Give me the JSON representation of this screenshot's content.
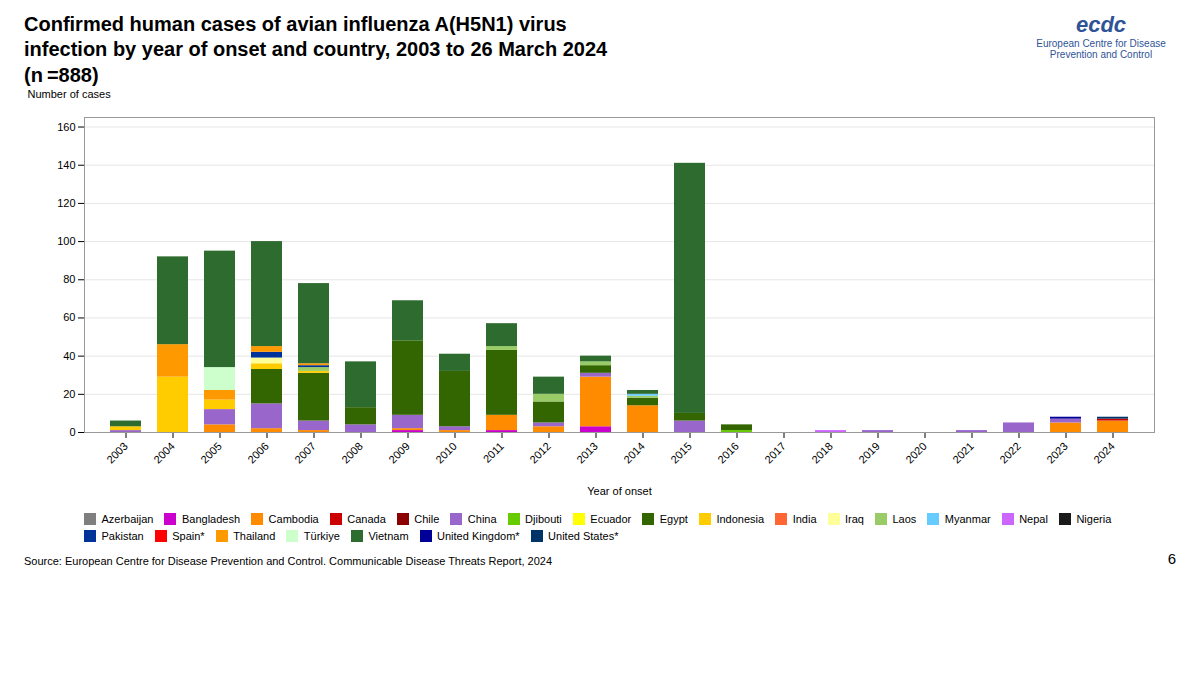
{
  "chart_data": {
    "type": "bar",
    "stacked": true,
    "title": "Confirmed human cases of avian influenza A(H5N1) virus\ninfection by year of onset and country, 2003 to 26 March 2024",
    "subtitle": "(n =888)",
    "xlabel": "Year of onset",
    "ylabel": "Number of cases",
    "annotations": [
      "ecdc",
      "European Centre for Disease Prevention and Control",
      "Source: European Centre for Disease Prevention and Control. Communicable Disease Threats Report, 2024",
      "6"
    ],
    "categories": [
      "2003",
      "2004",
      "2005",
      "2006",
      "2007",
      "2008",
      "2009",
      "2010",
      "2011",
      "2012",
      "2013",
      "2014",
      "2015",
      "2016",
      "2017",
      "2018",
      "2019",
      "2020",
      "2021",
      "2022",
      "2023",
      "2024"
    ],
    "series": [
      {
        "name": "Azerbaijan",
        "color": "#7F7F7F",
        "values": [
          0,
          0,
          0,
          0,
          0,
          0,
          0,
          0,
          0,
          0,
          0,
          0,
          0,
          0,
          0,
          0,
          0,
          0,
          0,
          0,
          0,
          0
        ]
      },
      {
        "name": "Bangladesh",
        "color": "#CC00CC",
        "values": [
          0,
          0,
          0,
          0,
          0,
          0,
          1,
          0,
          1,
          0,
          3,
          0,
          0,
          0,
          0,
          0,
          0,
          0,
          0,
          0,
          0,
          0
        ]
      },
      {
        "name": "Cambodia",
        "color": "#FF8C00",
        "values": [
          0,
          0,
          4,
          2,
          1,
          0,
          1,
          1,
          8,
          3,
          26,
          14,
          0,
          0,
          0,
          0,
          0,
          0,
          0,
          0,
          5,
          6
        ]
      },
      {
        "name": "Canada",
        "color": "#CC0000",
        "values": [
          0,
          0,
          0,
          0,
          0,
          0,
          0,
          0,
          0,
          0,
          0,
          0,
          0,
          0,
          0,
          0,
          0,
          0,
          0,
          0,
          0,
          1
        ]
      },
      {
        "name": "Chile",
        "color": "#8B0000",
        "values": [
          0,
          0,
          0,
          0,
          0,
          0,
          0,
          0,
          0,
          0,
          0,
          0,
          0,
          0,
          0,
          0,
          0,
          0,
          0,
          0,
          0,
          0
        ]
      },
      {
        "name": "China",
        "color": "#9966CC",
        "values": [
          1,
          0,
          8,
          13,
          5,
          4,
          7,
          2,
          0,
          2,
          2,
          0,
          6,
          0,
          0,
          0,
          1,
          0,
          1,
          5,
          2,
          0
        ]
      },
      {
        "name": "Djibouti",
        "color": "#66CC00",
        "values": [
          0,
          0,
          0,
          0,
          0,
          0,
          0,
          0,
          0,
          0,
          0,
          0,
          0,
          1,
          0,
          0,
          0,
          0,
          0,
          0,
          0,
          0
        ]
      },
      {
        "name": "Ecuador",
        "color": "#FFFF00",
        "values": [
          0,
          0,
          0,
          0,
          0,
          0,
          0,
          0,
          0,
          0,
          0,
          0,
          0,
          0,
          0,
          0,
          0,
          0,
          0,
          0,
          0,
          0
        ]
      },
      {
        "name": "Egypt",
        "color": "#336600",
        "values": [
          0,
          0,
          0,
          18,
          25,
          9,
          39,
          29,
          34,
          11,
          4,
          4,
          4,
          3,
          0,
          0,
          0,
          0,
          0,
          0,
          0,
          0
        ]
      },
      {
        "name": "Indonesia",
        "color": "#FFCC00",
        "values": [
          2,
          29,
          5,
          3,
          1,
          0,
          0,
          0,
          0,
          0,
          0,
          0,
          0,
          0,
          0,
          0,
          0,
          0,
          0,
          0,
          0,
          0
        ]
      },
      {
        "name": "India",
        "color": "#FF6633",
        "values": [
          0,
          0,
          0,
          0,
          0,
          0,
          0,
          0,
          0,
          0,
          0,
          0,
          0,
          0,
          0,
          0,
          0,
          0,
          0,
          0,
          0,
          0
        ]
      },
      {
        "name": "Iraq",
        "color": "#FFFF99",
        "values": [
          0,
          0,
          0,
          3,
          0,
          0,
          0,
          0,
          0,
          0,
          0,
          0,
          0,
          0,
          0,
          0,
          0,
          0,
          0,
          0,
          0,
          0
        ]
      },
      {
        "name": "Laos",
        "color": "#99CC66",
        "values": [
          0,
          0,
          0,
          0,
          2,
          0,
          0,
          0,
          2,
          4,
          2,
          1,
          0,
          0,
          0,
          0,
          0,
          0,
          0,
          0,
          0,
          0
        ]
      },
      {
        "name": "Myanmar",
        "color": "#66CCFF",
        "values": [
          0,
          0,
          0,
          0,
          0,
          0,
          0,
          0,
          0,
          0,
          0,
          1,
          0,
          0,
          0,
          0,
          0,
          0,
          0,
          0,
          0,
          0
        ]
      },
      {
        "name": "Nepal",
        "color": "#CC66FF",
        "values": [
          0,
          0,
          0,
          0,
          0,
          0,
          0,
          0,
          0,
          0,
          0,
          0,
          0,
          0,
          0,
          1,
          0,
          0,
          0,
          0,
          0,
          0
        ]
      },
      {
        "name": "Nigeria",
        "color": "#1A1A1A",
        "values": [
          0,
          0,
          0,
          0,
          0,
          0,
          0,
          0,
          0,
          0,
          0,
          0,
          0,
          0,
          0,
          0,
          0,
          0,
          0,
          0,
          0,
          0
        ]
      },
      {
        "name": "Pakistan",
        "color": "#003399",
        "values": [
          0,
          0,
          0,
          3,
          1,
          0,
          0,
          0,
          0,
          0,
          0,
          0,
          0,
          0,
          0,
          0,
          0,
          0,
          0,
          0,
          0,
          0
        ]
      },
      {
        "name": "Spain*",
        "color": "#FF0000",
        "values": [
          0,
          0,
          0,
          0,
          0,
          0,
          0,
          0,
          0,
          0,
          0,
          0,
          0,
          0,
          0,
          0,
          0,
          0,
          0,
          0,
          0,
          0
        ]
      },
      {
        "name": "Thailand",
        "color": "#FF9900",
        "values": [
          0,
          17,
          5,
          3,
          1,
          0,
          0,
          0,
          0,
          0,
          0,
          0,
          0,
          0,
          0,
          0,
          0,
          0,
          0,
          0,
          0,
          0
        ]
      },
      {
        "name": "Türkiye",
        "color": "#CCFFCC",
        "values": [
          0,
          0,
          12,
          0,
          0,
          0,
          0,
          0,
          0,
          0,
          0,
          0,
          0,
          0,
          0,
          0,
          0,
          0,
          0,
          0,
          0,
          0
        ]
      },
      {
        "name": "Vietnam",
        "color": "#2E6B2E",
        "values": [
          3,
          46,
          61,
          55,
          42,
          24,
          21,
          9,
          12,
          9,
          3,
          2,
          131,
          0,
          0,
          0,
          0,
          0,
          0,
          0,
          0,
          0
        ]
      },
      {
        "name": "United Kingdom*",
        "color": "#000099",
        "values": [
          0,
          0,
          0,
          0,
          0,
          0,
          0,
          0,
          0,
          0,
          0,
          0,
          0,
          0,
          0,
          0,
          0,
          0,
          0,
          0,
          1,
          0
        ]
      },
      {
        "name": "United States*",
        "color": "#003366",
        "values": [
          0,
          0,
          0,
          0,
          0,
          0,
          0,
          0,
          0,
          0,
          0,
          0,
          0,
          0,
          0,
          0,
          0,
          0,
          0,
          0,
          0,
          1
        ]
      }
    ],
    "ylim": [
      0,
      165
    ],
    "yticks": [
      0,
      20,
      40,
      60,
      80,
      100,
      120,
      140,
      160
    ],
    "grid": true,
    "legend": "bottom"
  }
}
